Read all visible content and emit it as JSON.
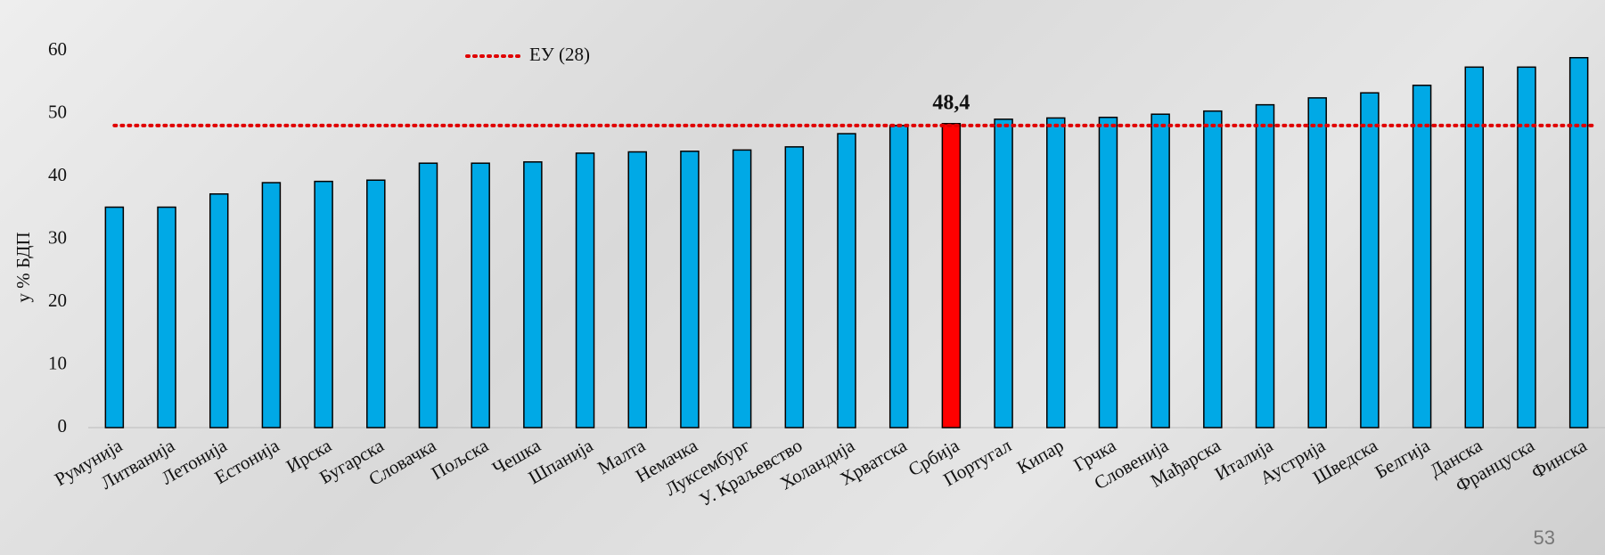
{
  "chart_data": {
    "type": "bar",
    "y_label": "у % БДП",
    "categories": [
      "Румунија",
      "Литванија",
      "Летонија",
      "Естонија",
      "Ирска",
      "Бугарска",
      "Словачка",
      "Пољска",
      "Чешка",
      "Шпанија",
      "Малта",
      "Немачка",
      "Луксембург",
      "У. Краљевство",
      "Холандија",
      "Хрватска",
      "Србија",
      "Португал",
      "Кипар",
      "Грчка",
      "Словенија",
      "Мађарска",
      "Италија",
      "Аустрија",
      "Шведска",
      "Белгија",
      "Данска",
      "Француска",
      "Финска"
    ],
    "values": [
      35.1,
      35.1,
      37.2,
      39.0,
      39.2,
      39.4,
      42.1,
      42.1,
      42.3,
      43.7,
      43.9,
      44.0,
      44.2,
      44.7,
      46.8,
      48.1,
      48.4,
      49.1,
      49.3,
      49.4,
      49.9,
      50.4,
      51.4,
      52.5,
      53.3,
      54.5,
      57.4,
      57.4,
      58.9
    ],
    "value_labels": [
      null,
      null,
      null,
      null,
      null,
      null,
      null,
      null,
      null,
      null,
      null,
      null,
      null,
      null,
      null,
      null,
      "48,4",
      null,
      null,
      null,
      null,
      null,
      null,
      null,
      null,
      null,
      null,
      null,
      null
    ],
    "colors": [
      "#00a9e6",
      "#00a9e6",
      "#00a9e6",
      "#00a9e6",
      "#00a9e6",
      "#00a9e6",
      "#00a9e6",
      "#00a9e6",
      "#00a9e6",
      "#00a9e6",
      "#00a9e6",
      "#00a9e6",
      "#00a9e6",
      "#00a9e6",
      "#00a9e6",
      "#00a9e6",
      "#ff0000",
      "#00a9e6",
      "#00a9e6",
      "#00a9e6",
      "#00a9e6",
      "#00a9e6",
      "#00a9e6",
      "#00a9e6",
      "#00a9e6",
      "#00a9e6",
      "#00a9e6",
      "#00a9e6",
      "#00a9e6"
    ],
    "reference_line": {
      "name": "ЕУ (28)",
      "value": 48.1,
      "color": "#e00000"
    },
    "ylim": [
      0,
      60
    ],
    "yticks": [
      0,
      10,
      20,
      30,
      40,
      50,
      60
    ]
  },
  "page_number": "53"
}
